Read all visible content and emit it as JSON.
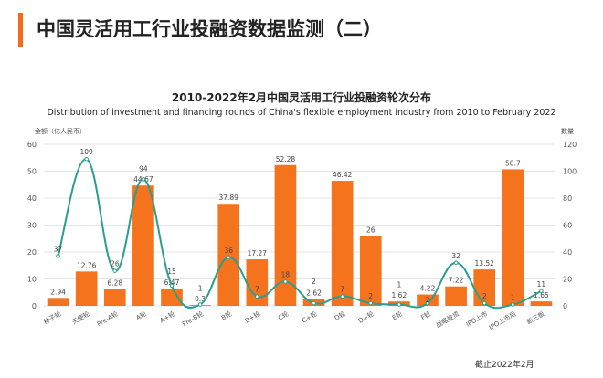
{
  "header": {
    "title": "中国灵活用工行业投融资数据监测（二）",
    "accent": "#f26b1d"
  },
  "footer": {
    "note": "截止2022年2月"
  },
  "chart_data": {
    "type": "bar+line",
    "title": "2010-2022年2月中国灵活用工行业投融资轮次分布",
    "subtitle": "Distribution of investment and financing rounds of China's flexible employment industry from 2010 to February 2022",
    "ylabel_left": "金额（亿人民币）",
    "ylabel_right": "数量",
    "ylim_left": [
      0,
      60
    ],
    "yticks_left": [
      0,
      10,
      20,
      30,
      40,
      50,
      60
    ],
    "ylim_right": [
      0,
      120
    ],
    "yticks_right": [
      0,
      20,
      40,
      60,
      80,
      100,
      120
    ],
    "grid": true,
    "categories": [
      "种子轮",
      "天使轮",
      "Pre-A轮",
      "A轮",
      "A+轮",
      "Pre-B轮",
      "B轮",
      "B+轮",
      "C轮",
      "C+轮",
      "D轮",
      "D+轮",
      "E轮",
      "F轮",
      "战略投资",
      "IPO上市",
      "IPO上市后",
      "新三板"
    ],
    "series": [
      {
        "type": "bar",
        "axis": "left",
        "color": "#f5731c",
        "values": [
          2.94,
          12.76,
          6.28,
          44.67,
          6.47,
          0.3,
          37.89,
          17.27,
          52.28,
          2.62,
          46.42,
          26,
          1.62,
          4.22,
          7.22,
          13.52,
          50.7,
          1.65
        ]
      },
      {
        "type": "line",
        "axis": "right",
        "color": "#2a9d8f",
        "values": [
          37,
          109,
          26,
          94,
          15,
          1,
          36,
          7,
          18,
          2,
          7,
          2,
          1,
          2,
          32,
          2,
          1,
          11
        ]
      }
    ]
  }
}
